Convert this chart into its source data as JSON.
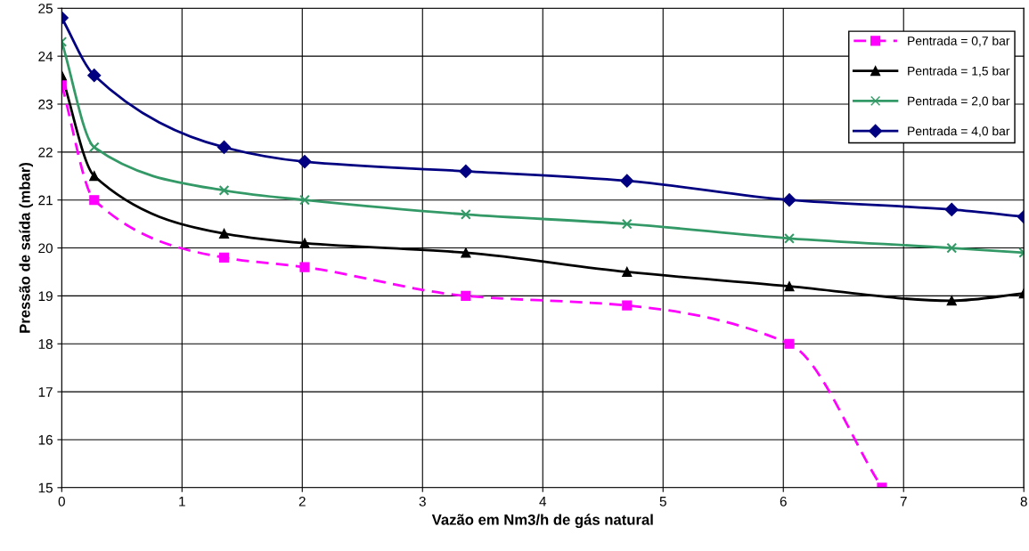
{
  "chart_data": {
    "type": "line",
    "xlabel": "Vazão em Nm3/h de gás natural",
    "ylabel": "Pressão de saída (mbar)",
    "xlim": [
      0,
      8
    ],
    "xticks": [
      0,
      1,
      2,
      3,
      4,
      5,
      6,
      7,
      8
    ],
    "ylim": [
      15,
      25
    ],
    "yticks": [
      15,
      16,
      17,
      18,
      19,
      20,
      21,
      22,
      23,
      24,
      25
    ],
    "grid": true,
    "legend": "top right",
    "series": [
      {
        "name": "Pentrada = 0,7 bar",
        "color": "#ff00ff",
        "marker": "square",
        "line_style": "dashed",
        "x": [
          0,
          0.27,
          1.35,
          2.02,
          3.36,
          4.7,
          6.05,
          6.82
        ],
        "values": [
          23.4,
          21.0,
          19.8,
          19.6,
          19.0,
          18.8,
          18.0,
          15.0
        ]
      },
      {
        "name": "Pentrada = 1,5 bar",
        "color": "#000000",
        "marker": "triangle",
        "line_style": "solid",
        "x": [
          0,
          0.27,
          1.35,
          2.02,
          3.36,
          4.7,
          6.05,
          7.4,
          8
        ],
        "values": [
          23.6,
          21.5,
          20.3,
          20.1,
          19.9,
          19.5,
          19.2,
          18.9,
          19.05
        ]
      },
      {
        "name": "Pentrada = 2,0 bar",
        "color": "#339966",
        "marker": "cross",
        "line_style": "solid",
        "x": [
          0,
          0.27,
          1.35,
          2.02,
          3.36,
          4.7,
          6.05,
          7.4,
          8
        ],
        "values": [
          24.3,
          22.1,
          21.2,
          21.0,
          20.7,
          20.5,
          20.2,
          20.0,
          19.9
        ]
      },
      {
        "name": "Pentrada = 4,0 bar",
        "color": "#000080",
        "marker": "diamond",
        "line_style": "solid",
        "x": [
          0,
          0.27,
          1.35,
          2.02,
          3.36,
          4.7,
          6.05,
          7.4,
          8
        ],
        "values": [
          24.8,
          23.6,
          22.1,
          21.8,
          21.6,
          21.4,
          21.0,
          20.8,
          20.65
        ]
      }
    ]
  }
}
